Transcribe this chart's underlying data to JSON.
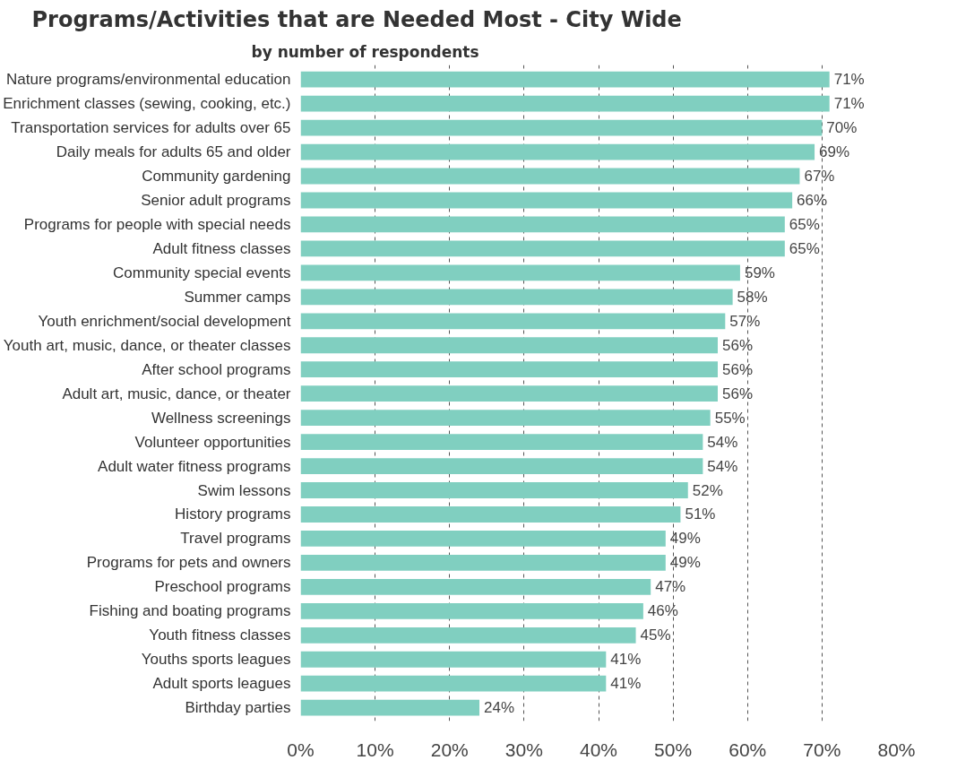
{
  "chart_data": {
    "type": "bar",
    "orientation": "horizontal",
    "title": "Programs/Activities that are Needed Most - City Wide",
    "subtitle": "by number of respondents",
    "categories": [
      "Nature programs/environmental education",
      "Enrichment classes (sewing, cooking, etc.)",
      "Transportation services for adults over 65",
      "Daily meals for adults 65 and older",
      "Community gardening",
      "Senior adult programs",
      "Programs for people with special needs",
      "Adult fitness classes",
      "Community special events",
      "Summer camps",
      "Youth enrichment/social development",
      "Youth art, music, dance, or theater classes",
      "After school programs",
      "Adult art, music, dance, or theater",
      "Wellness screenings",
      "Volunteer opportunities",
      "Adult water fitness programs",
      "Swim lessons",
      "History programs",
      "Travel programs",
      "Programs for pets and owners",
      "Preschool programs",
      "Fishing and boating programs",
      "Youth fitness classes",
      "Youths sports leagues",
      "Adult sports leagues",
      "Birthday parties"
    ],
    "values": [
      71,
      71,
      70,
      69,
      67,
      66,
      65,
      65,
      59,
      58,
      57,
      56,
      56,
      56,
      55,
      54,
      54,
      52,
      51,
      49,
      49,
      47,
      46,
      45,
      41,
      41,
      24
    ],
    "value_labels": [
      "71%",
      "71%",
      "70%",
      "69%",
      "67%",
      "66%",
      "65%",
      "65%",
      "59%",
      "58%",
      "57%",
      "56%",
      "56%",
      "56%",
      "55%",
      "54%",
      "54%",
      "52%",
      "51%",
      "49%",
      "49%",
      "47%",
      "46%",
      "45%",
      "41%",
      "41%",
      "24%"
    ],
    "color": "#80cfc0",
    "xlim": [
      0,
      80
    ],
    "xticks": [
      {
        "value": 0,
        "label": "0%"
      },
      {
        "value": 10,
        "label": "10%"
      },
      {
        "value": 20,
        "label": "20%"
      },
      {
        "value": 30,
        "label": "30%"
      },
      {
        "value": 40,
        "label": "40%"
      },
      {
        "value": 50,
        "label": "50%"
      },
      {
        "value": 60,
        "label": "60%"
      },
      {
        "value": 70,
        "label": "70%"
      },
      {
        "value": 80,
        "label": "80%"
      }
    ],
    "grid": "x"
  }
}
